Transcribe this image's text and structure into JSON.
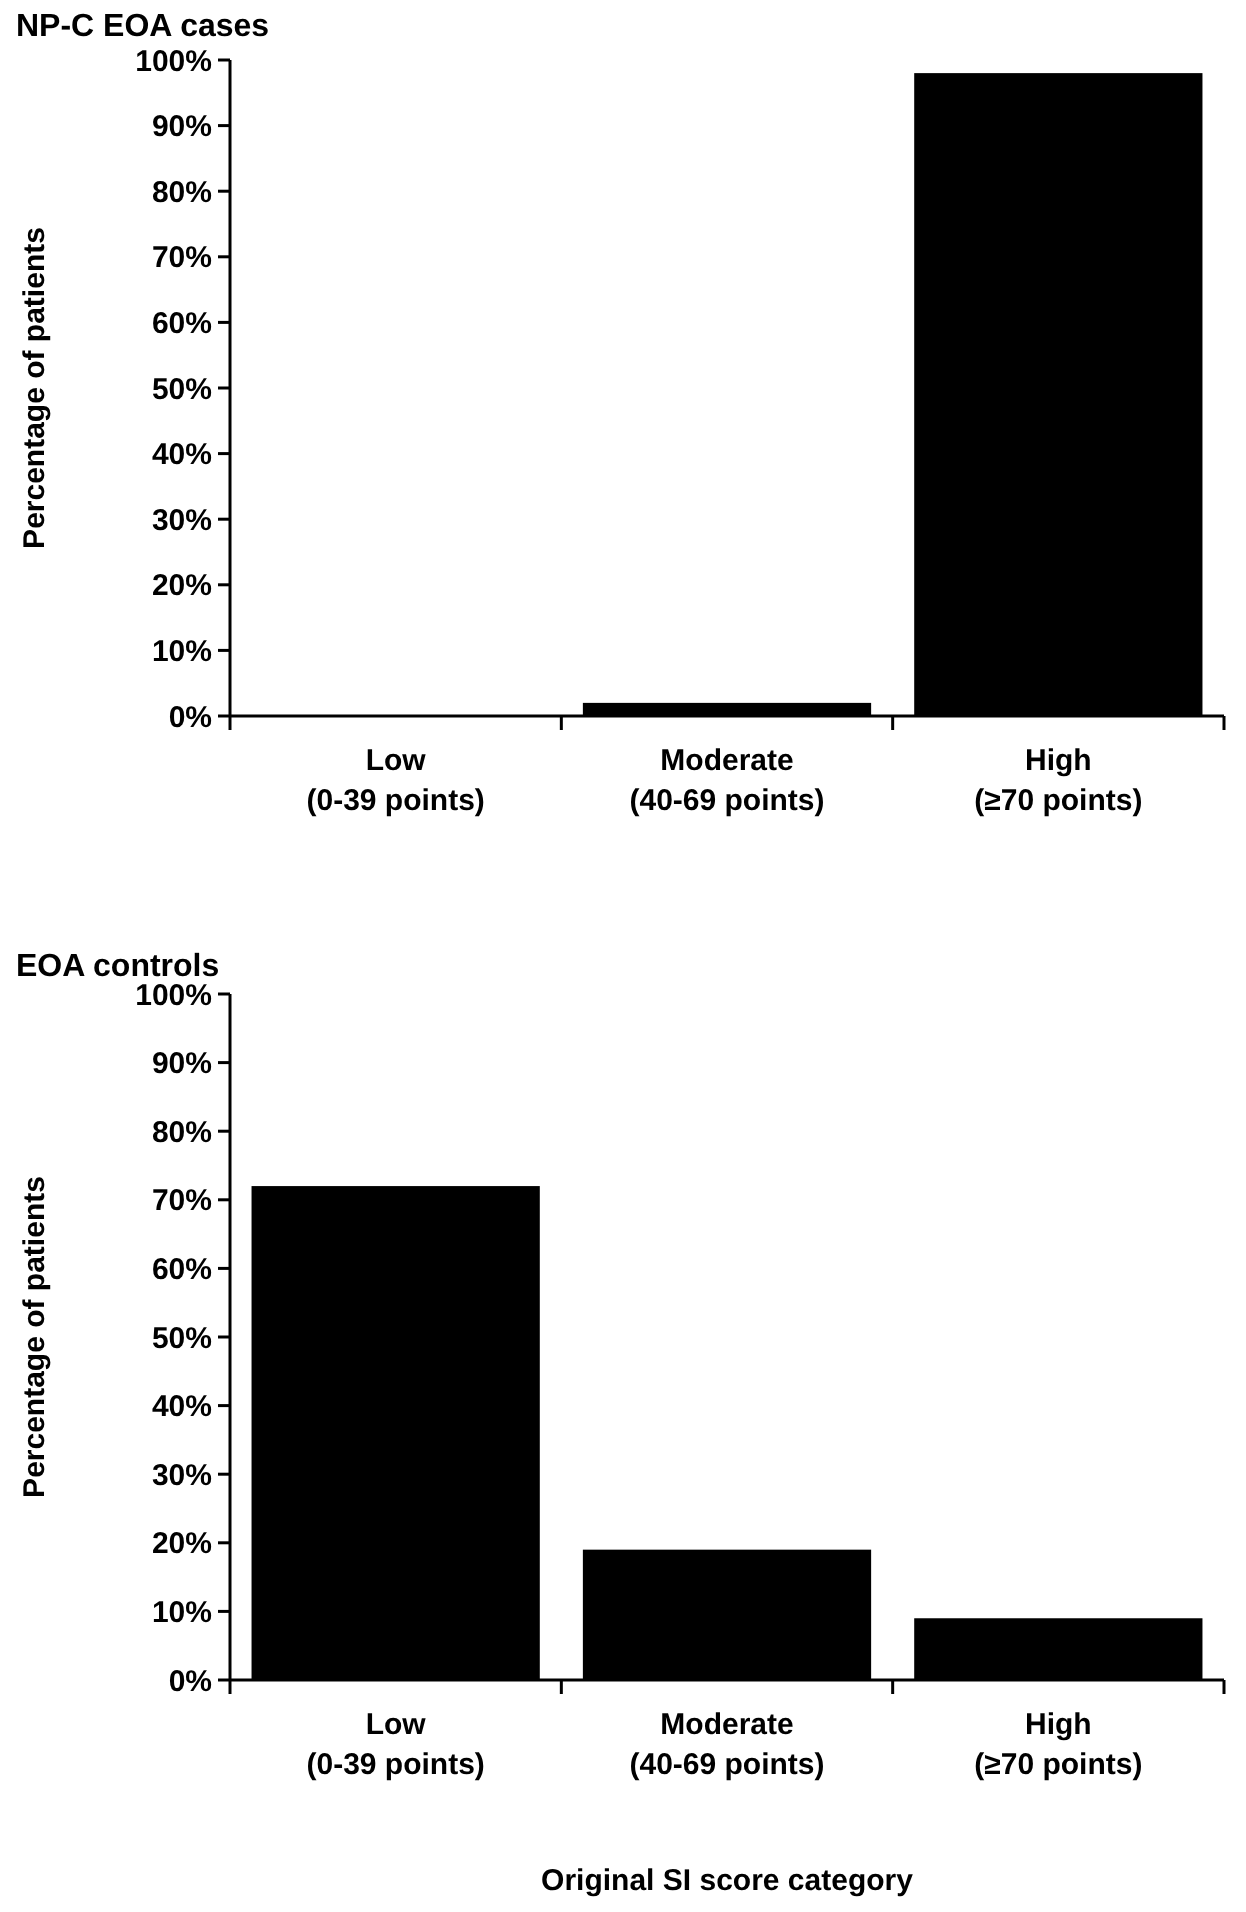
{
  "chart_data": [
    {
      "type": "bar",
      "title": "NP-C EOA cases",
      "ylabel": "Percentage of patients",
      "categories": [
        "Low\n(0-39 points)",
        "Moderate\n(40-69 points)",
        "High\n(≥70 points)"
      ],
      "values": [
        0,
        2,
        98
      ],
      "color": "#000000",
      "ylim": [
        0,
        100
      ],
      "yticks": [
        {
          "value": 0,
          "label": "0%"
        },
        {
          "value": 10,
          "label": "10%"
        },
        {
          "value": 20,
          "label": "20%"
        },
        {
          "value": 30,
          "label": "30%"
        },
        {
          "value": 40,
          "label": "40%"
        },
        {
          "value": 50,
          "label": "50%"
        },
        {
          "value": 60,
          "label": "60%"
        },
        {
          "value": 70,
          "label": "70%"
        },
        {
          "value": 80,
          "label": "80%"
        },
        {
          "value": 90,
          "label": "90%"
        },
        {
          "value": 100,
          "label": "100%"
        }
      ],
      "grid": false
    },
    {
      "type": "bar",
      "title": "EOA controls",
      "ylabel": "Percentage of patients",
      "xlabel": "Original SI score category",
      "categories": [
        "Low\n(0-39 points)",
        "Moderate\n(40-69 points)",
        "High\n(≥70 points)"
      ],
      "values": [
        72,
        19,
        9
      ],
      "color": "#000000",
      "ylim": [
        0,
        100
      ],
      "yticks": [
        {
          "value": 0,
          "label": "0%"
        },
        {
          "value": 10,
          "label": "10%"
        },
        {
          "value": 20,
          "label": "20%"
        },
        {
          "value": 30,
          "label": "30%"
        },
        {
          "value": 40,
          "label": "40%"
        },
        {
          "value": 50,
          "label": "50%"
        },
        {
          "value": 60,
          "label": "60%"
        },
        {
          "value": 70,
          "label": "70%"
        },
        {
          "value": 80,
          "label": "80%"
        },
        {
          "value": 90,
          "label": "90%"
        },
        {
          "value": 100,
          "label": "100%"
        }
      ],
      "grid": false
    }
  ]
}
